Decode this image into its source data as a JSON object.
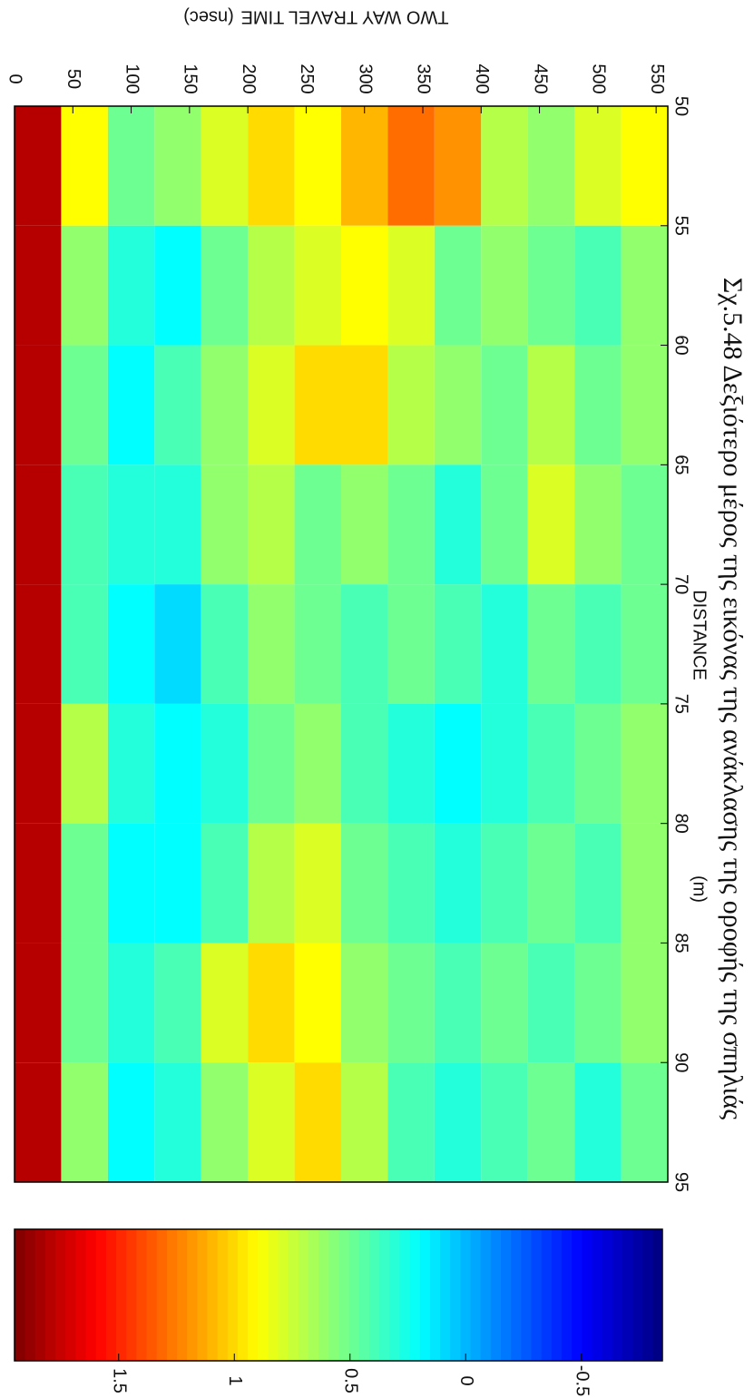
{
  "chart_data": {
    "type": "heatmap",
    "title": "Σχ.5.48 Δεξιότερο μέρος της εικόνας της ανάκλασης της οροφής της σπηλιάς",
    "x_label": "DISTANCE",
    "x_unit": "(m)",
    "y_label": "TWO WAY TRAVEL TIME",
    "y_unit": "(nsec)",
    "x": [
      52.5,
      57.5,
      62.5,
      67.5,
      72.5,
      77.5,
      82.5,
      87.5,
      92.5
    ],
    "y": [
      20,
      60,
      100,
      140,
      180,
      220,
      260,
      300,
      340,
      380,
      420,
      460,
      500,
      540
    ],
    "z": [
      [
        1.8,
        0.9,
        0.5,
        0.6,
        0.8,
        1.0,
        0.9,
        1.1,
        1.3,
        1.2,
        0.7,
        0.6,
        0.8,
        0.9
      ],
      [
        1.8,
        0.6,
        0.3,
        0.2,
        0.5,
        0.7,
        0.8,
        0.9,
        0.8,
        0.5,
        0.6,
        0.5,
        0.4,
        0.6
      ],
      [
        1.8,
        0.5,
        0.2,
        0.4,
        0.6,
        0.8,
        1.0,
        1.0,
        0.7,
        0.6,
        0.5,
        0.7,
        0.5,
        0.6
      ],
      [
        1.8,
        0.4,
        0.3,
        0.3,
        0.6,
        0.7,
        0.5,
        0.6,
        0.5,
        0.3,
        0.5,
        0.8,
        0.6,
        0.5
      ],
      [
        1.8,
        0.4,
        0.2,
        0.1,
        0.4,
        0.6,
        0.5,
        0.4,
        0.5,
        0.4,
        0.3,
        0.5,
        0.4,
        0.5
      ],
      [
        1.8,
        0.7,
        0.3,
        0.2,
        0.3,
        0.5,
        0.6,
        0.4,
        0.3,
        0.2,
        0.3,
        0.4,
        0.5,
        0.6
      ],
      [
        1.8,
        0.5,
        0.2,
        0.2,
        0.4,
        0.7,
        0.8,
        0.5,
        0.4,
        0.3,
        0.4,
        0.5,
        0.4,
        0.6
      ],
      [
        1.8,
        0.5,
        0.3,
        0.4,
        0.8,
        1.0,
        0.9,
        0.6,
        0.5,
        0.4,
        0.5,
        0.4,
        0.5,
        0.6
      ],
      [
        1.8,
        0.6,
        0.2,
        0.3,
        0.6,
        0.8,
        1.0,
        0.7,
        0.4,
        0.3,
        0.4,
        0.5,
        0.3,
        0.5
      ]
    ],
    "xlim": [
      50,
      95
    ],
    "xticks": [
      50,
      55,
      60,
      65,
      70,
      75,
      80,
      85,
      90,
      95
    ],
    "ylim": [
      0,
      560
    ],
    "yticks": [
      0,
      50,
      100,
      150,
      200,
      250,
      300,
      350,
      400,
      450,
      500,
      550
    ],
    "clim": [
      -0.85,
      1.95
    ],
    "cticks": [
      -0.5,
      0,
      0.5,
      1,
      1.5
    ],
    "colormap": "jet"
  }
}
